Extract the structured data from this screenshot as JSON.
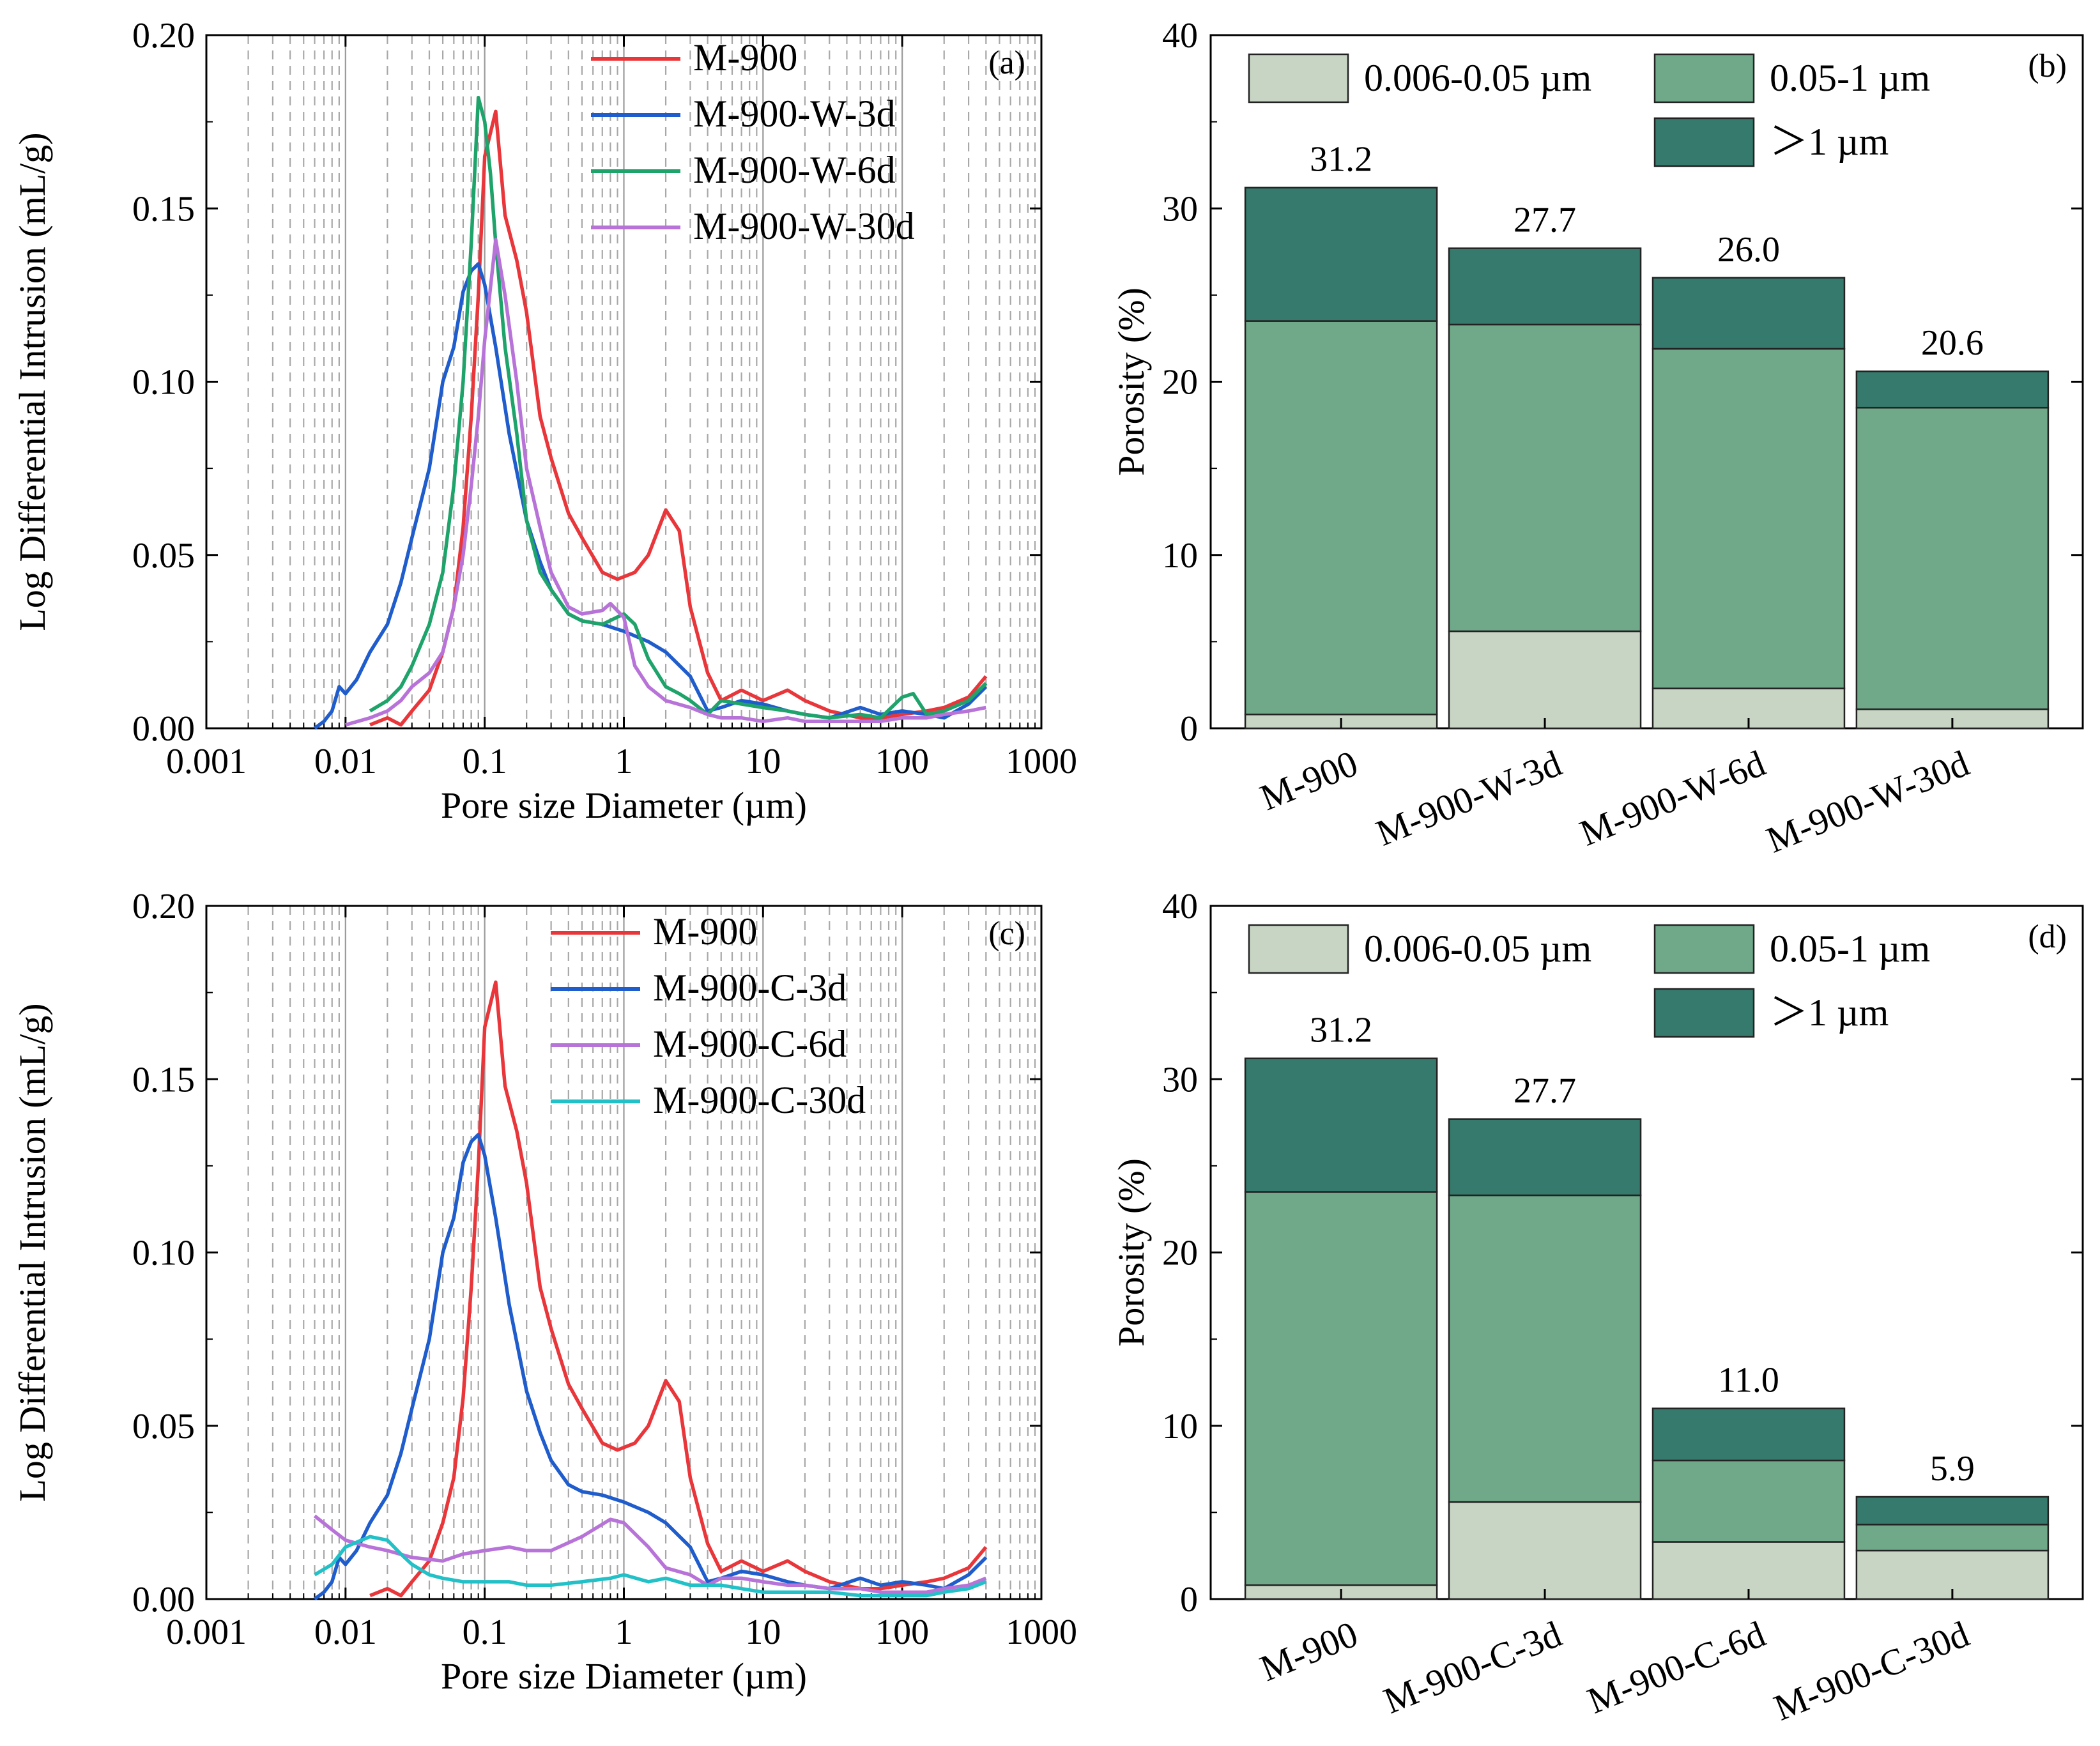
{
  "chart_data": [
    {
      "id": "a",
      "type": "line",
      "panel_label": "(a)",
      "xlabel": "Pore size Diameter (µm)",
      "ylabel": "Log Differential Intrusion (mL/g)",
      "xscale": "log",
      "xlim": [
        0.001,
        1000
      ],
      "ylim": [
        0,
        0.2
      ],
      "xticks": [
        0.001,
        0.01,
        0.1,
        1,
        10,
        100,
        1000
      ],
      "xtick_labels": [
        "0.001",
        "0.01",
        "0.1",
        "1",
        "10",
        "100",
        "1000"
      ],
      "yticks": [
        0,
        0.05,
        0.1,
        0.15,
        0.2
      ],
      "ytick_labels": [
        "0.00",
        "0.05",
        "0.10",
        "0.15",
        "0.20"
      ],
      "grid": "vertical dashed at log minor ticks",
      "legend_position": "top-right",
      "series": [
        {
          "name": "M-900",
          "color": "#e8363a",
          "x": [
            0.015,
            0.02,
            0.025,
            0.03,
            0.04,
            0.05,
            0.06,
            0.07,
            0.08,
            0.09,
            0.1,
            0.12,
            0.14,
            0.17,
            0.2,
            0.25,
            0.3,
            0.4,
            0.5,
            0.7,
            0.9,
            1.2,
            1.5,
            2,
            2.5,
            3,
            4,
            5,
            7,
            10,
            15,
            20,
            30,
            50,
            70,
            100,
            150,
            200,
            300,
            400
          ],
          "y": [
            0.001,
            0.003,
            0.001,
            0.005,
            0.011,
            0.022,
            0.035,
            0.058,
            0.09,
            0.125,
            0.165,
            0.178,
            0.148,
            0.135,
            0.12,
            0.09,
            0.078,
            0.062,
            0.055,
            0.045,
            0.043,
            0.045,
            0.05,
            0.063,
            0.057,
            0.035,
            0.016,
            0.008,
            0.011,
            0.008,
            0.011,
            0.008,
            0.005,
            0.003,
            0.003,
            0.004,
            0.005,
            0.006,
            0.009,
            0.015
          ]
        },
        {
          "name": "M-900-W-3d",
          "color": "#1f5ccc",
          "x": [
            0.006,
            0.007,
            0.008,
            0.009,
            0.01,
            0.012,
            0.015,
            0.02,
            0.025,
            0.03,
            0.04,
            0.05,
            0.06,
            0.07,
            0.08,
            0.09,
            0.1,
            0.12,
            0.15,
            0.2,
            0.25,
            0.3,
            0.4,
            0.5,
            0.7,
            1,
            1.5,
            2,
            3,
            4,
            5,
            7,
            10,
            15,
            20,
            30,
            50,
            70,
            100,
            150,
            200,
            300,
            400
          ],
          "y": [
            0,
            0.002,
            0.005,
            0.012,
            0.01,
            0.014,
            0.022,
            0.03,
            0.042,
            0.055,
            0.075,
            0.1,
            0.11,
            0.126,
            0.132,
            0.134,
            0.128,
            0.11,
            0.085,
            0.06,
            0.048,
            0.04,
            0.033,
            0.031,
            0.03,
            0.028,
            0.025,
            0.022,
            0.015,
            0.005,
            0.006,
            0.008,
            0.007,
            0.005,
            0.004,
            0.003,
            0.006,
            0.004,
            0.005,
            0.004,
            0.003,
            0.007,
            0.012
          ]
        },
        {
          "name": "M-900-W-6d",
          "color": "#1ea36a",
          "x": [
            0.015,
            0.02,
            0.025,
            0.03,
            0.04,
            0.05,
            0.06,
            0.07,
            0.08,
            0.09,
            0.1,
            0.11,
            0.12,
            0.14,
            0.17,
            0.2,
            0.25,
            0.3,
            0.4,
            0.5,
            0.7,
            1,
            1.2,
            1.5,
            2,
            2.5,
            3,
            4,
            5,
            7,
            10,
            15,
            20,
            30,
            50,
            70,
            100,
            120,
            150,
            200,
            300,
            400
          ],
          "y": [
            0.005,
            0.008,
            0.012,
            0.018,
            0.03,
            0.045,
            0.07,
            0.1,
            0.14,
            0.182,
            0.175,
            0.16,
            0.14,
            0.11,
            0.085,
            0.06,
            0.045,
            0.04,
            0.033,
            0.031,
            0.03,
            0.033,
            0.03,
            0.02,
            0.012,
            0.01,
            0.008,
            0.004,
            0.008,
            0.007,
            0.006,
            0.005,
            0.004,
            0.003,
            0.004,
            0.003,
            0.009,
            0.01,
            0.004,
            0.005,
            0.008,
            0.013
          ]
        },
        {
          "name": "M-900-W-30d",
          "color": "#b873d9",
          "x": [
            0.01,
            0.015,
            0.02,
            0.025,
            0.03,
            0.04,
            0.05,
            0.06,
            0.07,
            0.08,
            0.09,
            0.1,
            0.12,
            0.14,
            0.17,
            0.2,
            0.25,
            0.3,
            0.4,
            0.5,
            0.7,
            0.8,
            1,
            1.2,
            1.5,
            2,
            3,
            4,
            5,
            7,
            10,
            15,
            20,
            30,
            50,
            70,
            100,
            150,
            200,
            300,
            400
          ],
          "y": [
            0.001,
            0.003,
            0.005,
            0.008,
            0.012,
            0.016,
            0.022,
            0.035,
            0.05,
            0.07,
            0.09,
            0.112,
            0.141,
            0.125,
            0.1,
            0.075,
            0.058,
            0.045,
            0.035,
            0.033,
            0.034,
            0.036,
            0.032,
            0.018,
            0.012,
            0.008,
            0.006,
            0.004,
            0.003,
            0.003,
            0.002,
            0.003,
            0.002,
            0.002,
            0.002,
            0.002,
            0.003,
            0.003,
            0.004,
            0.005,
            0.006
          ]
        }
      ]
    },
    {
      "id": "b",
      "type": "bar",
      "stacked": true,
      "panel_label": "(b)",
      "xlabel": "",
      "ylabel": "Porosity (%)",
      "ylim": [
        0,
        40
      ],
      "yticks": [
        0,
        10,
        20,
        30,
        40
      ],
      "ytick_labels": [
        "0",
        "10",
        "20",
        "30",
        "40"
      ],
      "legend_position": "top",
      "categories": [
        "M-900",
        "M-900-W-3d",
        "M-900-W-6d",
        "M-900-W-30d"
      ],
      "totals": [
        31.2,
        27.7,
        26.0,
        20.6
      ],
      "total_labels": [
        "31.2",
        "27.7",
        "26.0",
        "20.6"
      ],
      "series": [
        {
          "name": "0.006-0.05 µm",
          "color": "#c8d4c4",
          "values": [
            0.8,
            5.6,
            2.3,
            1.1
          ]
        },
        {
          "name": "0.05-1 µm",
          "color": "#6fa98a",
          "values": [
            22.7,
            17.7,
            19.6,
            17.4
          ]
        },
        {
          "name": "＞1 µm",
          "color": "#357a6c",
          "values": [
            7.7,
            4.4,
            4.1,
            2.1
          ]
        }
      ]
    },
    {
      "id": "c",
      "type": "line",
      "panel_label": "(c)",
      "xlabel": "Pore size Diameter (µm)",
      "ylabel": "Log Differential Intrusion (mL/g)",
      "xscale": "log",
      "xlim": [
        0.001,
        1000
      ],
      "ylim": [
        0,
        0.2
      ],
      "xticks": [
        0.001,
        0.01,
        0.1,
        1,
        10,
        100,
        1000
      ],
      "xtick_labels": [
        "0.001",
        "0.01",
        "0.1",
        "1",
        "10",
        "100",
        "1000"
      ],
      "yticks": [
        0,
        0.05,
        0.1,
        0.15,
        0.2
      ],
      "ytick_labels": [
        "0.00",
        "0.05",
        "0.10",
        "0.15",
        "0.20"
      ],
      "grid": "vertical dashed at log minor ticks",
      "legend_position": "top-right",
      "series": [
        {
          "name": "M-900",
          "color": "#e8363a",
          "x": [
            0.015,
            0.02,
            0.025,
            0.03,
            0.04,
            0.05,
            0.06,
            0.07,
            0.08,
            0.09,
            0.1,
            0.12,
            0.14,
            0.17,
            0.2,
            0.25,
            0.3,
            0.4,
            0.5,
            0.7,
            0.9,
            1.2,
            1.5,
            2,
            2.5,
            3,
            4,
            5,
            7,
            10,
            15,
            20,
            30,
            50,
            70,
            100,
            150,
            200,
            300,
            400
          ],
          "y": [
            0.001,
            0.003,
            0.001,
            0.005,
            0.011,
            0.022,
            0.035,
            0.058,
            0.09,
            0.125,
            0.165,
            0.178,
            0.148,
            0.135,
            0.12,
            0.09,
            0.078,
            0.062,
            0.055,
            0.045,
            0.043,
            0.045,
            0.05,
            0.063,
            0.057,
            0.035,
            0.016,
            0.008,
            0.011,
            0.008,
            0.011,
            0.008,
            0.005,
            0.003,
            0.003,
            0.004,
            0.005,
            0.006,
            0.009,
            0.015
          ]
        },
        {
          "name": "M-900-C-3d",
          "color": "#1f5ccc",
          "x": [
            0.006,
            0.007,
            0.008,
            0.009,
            0.01,
            0.012,
            0.015,
            0.02,
            0.025,
            0.03,
            0.04,
            0.05,
            0.06,
            0.07,
            0.08,
            0.09,
            0.1,
            0.12,
            0.15,
            0.2,
            0.25,
            0.3,
            0.4,
            0.5,
            0.7,
            1,
            1.5,
            2,
            3,
            4,
            5,
            7,
            10,
            15,
            20,
            30,
            50,
            70,
            100,
            150,
            200,
            300,
            400
          ],
          "y": [
            0,
            0.002,
            0.005,
            0.012,
            0.01,
            0.014,
            0.022,
            0.03,
            0.042,
            0.055,
            0.075,
            0.1,
            0.11,
            0.126,
            0.132,
            0.134,
            0.128,
            0.11,
            0.085,
            0.06,
            0.048,
            0.04,
            0.033,
            0.031,
            0.03,
            0.028,
            0.025,
            0.022,
            0.015,
            0.005,
            0.006,
            0.008,
            0.007,
            0.005,
            0.004,
            0.003,
            0.006,
            0.004,
            0.005,
            0.004,
            0.003,
            0.007,
            0.012
          ]
        },
        {
          "name": "M-900-C-6d",
          "color": "#b873d9",
          "x": [
            0.006,
            0.008,
            0.01,
            0.015,
            0.02,
            0.03,
            0.05,
            0.07,
            0.1,
            0.15,
            0.2,
            0.3,
            0.5,
            0.8,
            1,
            1.5,
            2,
            3,
            4,
            5,
            7,
            10,
            15,
            20,
            30,
            50,
            70,
            100,
            150,
            200,
            300,
            400
          ],
          "y": [
            0.024,
            0.02,
            0.017,
            0.015,
            0.014,
            0.012,
            0.011,
            0.013,
            0.014,
            0.015,
            0.014,
            0.014,
            0.018,
            0.023,
            0.022,
            0.015,
            0.009,
            0.007,
            0.004,
            0.006,
            0.006,
            0.005,
            0.004,
            0.004,
            0.003,
            0.003,
            0.002,
            0.002,
            0.002,
            0.003,
            0.004,
            0.006
          ]
        },
        {
          "name": "M-900-C-30d",
          "color": "#22c1c8",
          "x": [
            0.006,
            0.008,
            0.01,
            0.013,
            0.015,
            0.02,
            0.025,
            0.03,
            0.04,
            0.05,
            0.07,
            0.1,
            0.15,
            0.2,
            0.3,
            0.5,
            0.8,
            1,
            1.5,
            2,
            3,
            5,
            7,
            10,
            20,
            30,
            50,
            70,
            100,
            150,
            200,
            300,
            400
          ],
          "y": [
            0.007,
            0.01,
            0.015,
            0.017,
            0.018,
            0.017,
            0.013,
            0.01,
            0.007,
            0.006,
            0.005,
            0.005,
            0.005,
            0.004,
            0.004,
            0.005,
            0.006,
            0.007,
            0.005,
            0.006,
            0.004,
            0.004,
            0.003,
            0.002,
            0.002,
            0.002,
            0.001,
            0.001,
            0.001,
            0.001,
            0.002,
            0.003,
            0.005
          ]
        }
      ]
    },
    {
      "id": "d",
      "type": "bar",
      "stacked": true,
      "panel_label": "(d)",
      "xlabel": "",
      "ylabel": "Porosity (%)",
      "ylim": [
        0,
        40
      ],
      "yticks": [
        0,
        10,
        20,
        30,
        40
      ],
      "ytick_labels": [
        "0",
        "10",
        "20",
        "30",
        "40"
      ],
      "legend_position": "top",
      "categories": [
        "M-900",
        "M-900-C-3d",
        "M-900-C-6d",
        "M-900-C-30d"
      ],
      "totals": [
        31.2,
        27.7,
        11.0,
        5.9
      ],
      "total_labels": [
        "31.2",
        "27.7",
        "11.0",
        "5.9"
      ],
      "series": [
        {
          "name": "0.006-0.05 µm",
          "color": "#c8d4c4",
          "values": [
            0.8,
            5.6,
            3.3,
            2.8
          ]
        },
        {
          "name": "0.05-1 µm",
          "color": "#6fa98a",
          "values": [
            22.7,
            17.7,
            4.7,
            1.5
          ]
        },
        {
          "name": "＞1 µm",
          "color": "#357a6c",
          "values": [
            7.7,
            4.4,
            3.0,
            1.6
          ]
        }
      ]
    }
  ]
}
